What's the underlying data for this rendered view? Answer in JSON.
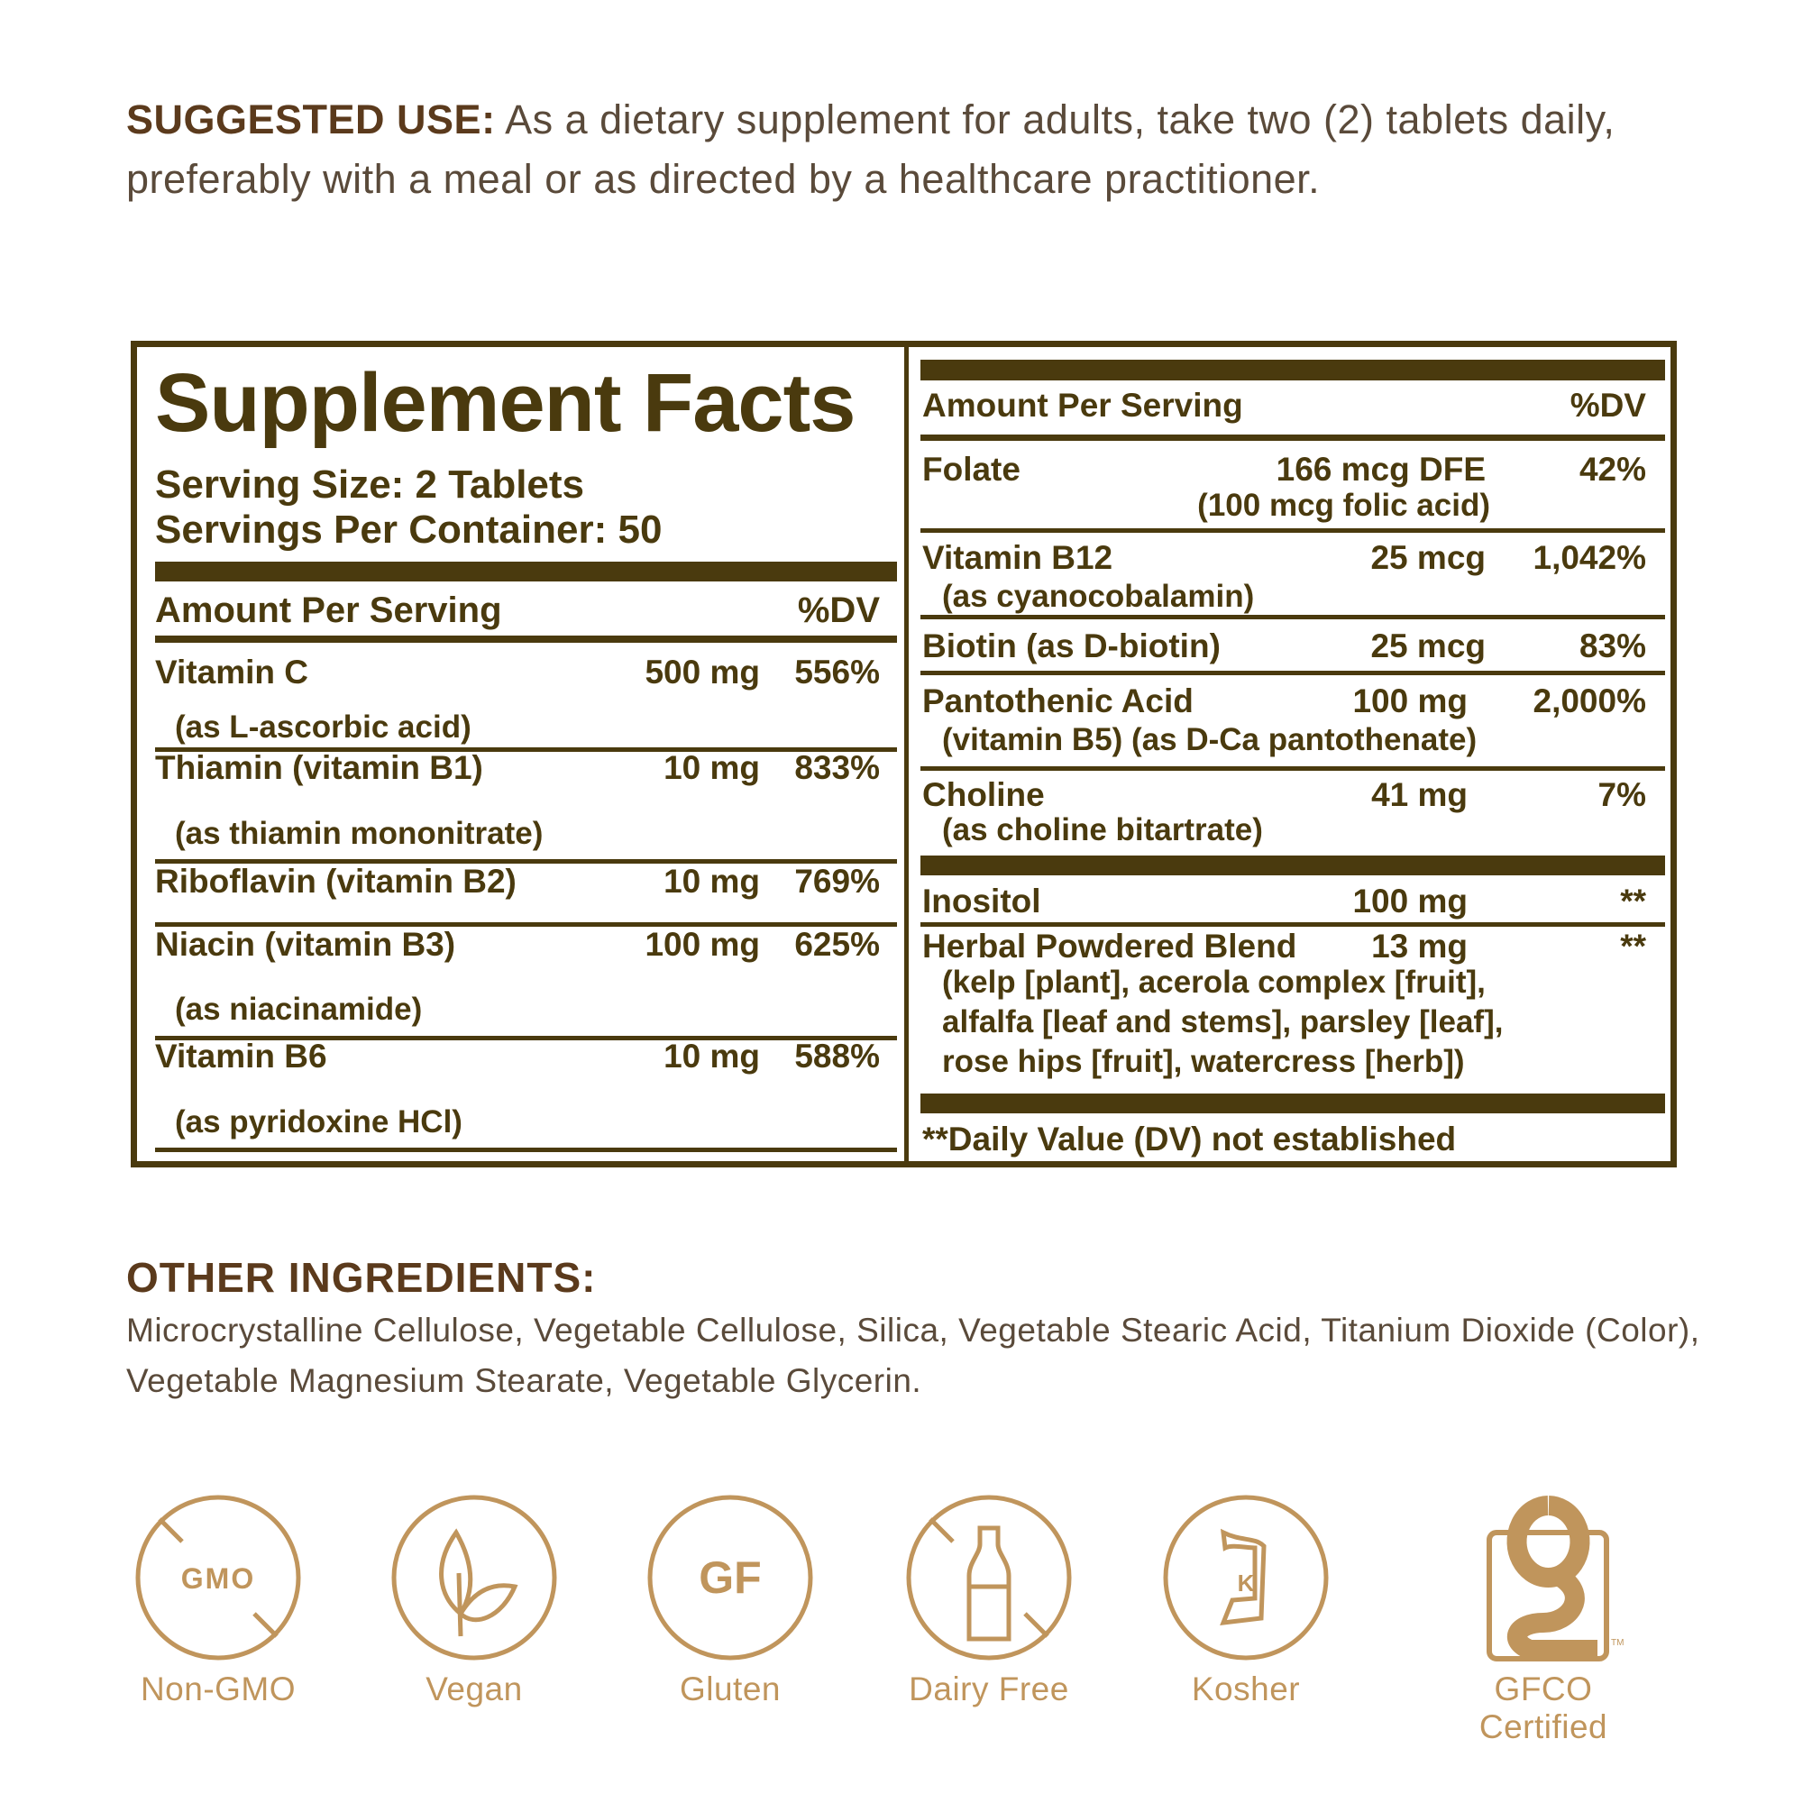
{
  "suggested_use": {
    "label": "SUGGESTED USE:",
    "text": " As a dietary supplement for adults, take two (2) tablets daily, preferably with a meal or as directed by a healthcare practitioner."
  },
  "facts": {
    "title": "Supplement Facts",
    "serving_size": "Serving Size: 2 Tablets",
    "servings_per_container": "Servings Per Container: 50",
    "header_amount": "Amount Per Serving",
    "header_dv": "%DV",
    "left_rows": [
      {
        "name": "Vitamin C",
        "sub": "(as L-ascorbic acid)",
        "amount": "500 mg",
        "dv": "556%"
      },
      {
        "name": "Thiamin (vitamin B1)",
        "sub": "(as thiamin mononitrate)",
        "amount": "10 mg",
        "dv": "833%"
      },
      {
        "name": "Riboflavin (vitamin B2)",
        "sub": "",
        "amount": "10 mg",
        "dv": "769%"
      },
      {
        "name": "Niacin (vitamin B3)",
        "sub": "(as niacinamide)",
        "amount": "100 mg",
        "dv": "625%"
      },
      {
        "name": "Vitamin B6",
        "sub": "(as pyridoxine HCl)",
        "amount": "10 mg",
        "dv": "588%"
      }
    ],
    "right_rows": [
      {
        "name": "Folate",
        "sub": "(100 mcg folic acid)",
        "amount": "166 mcg DFE",
        "dv": "42%"
      },
      {
        "name": "Vitamin B12",
        "sub": "(as cyanocobalamin)",
        "amount": "25 mcg",
        "dv": "1,042%"
      },
      {
        "name": "Biotin (as D-biotin)",
        "sub": "",
        "amount": "25 mcg",
        "dv": "83%"
      },
      {
        "name": "Pantothenic Acid",
        "sub": "(vitamin B5) (as D-Ca pantothenate)",
        "amount": "100 mg",
        "dv": "2,000%"
      },
      {
        "name": "Choline",
        "sub": "(as choline bitartrate)",
        "amount": "41 mg",
        "dv": "7%"
      },
      {
        "name": "Inositol",
        "sub": "",
        "amount": "100 mg",
        "dv": "**"
      },
      {
        "name": "Herbal Powdered Blend",
        "sub": "(kelp [plant], acerola complex [fruit],\nalfalfa [leaf and stems], parsley [leaf],\nrose hips [fruit], watercress [herb])",
        "amount": "13 mg",
        "dv": "**"
      }
    ],
    "footnote": "**Daily Value (DV) not established"
  },
  "other_ingredients": {
    "heading": "OTHER INGREDIENTS:",
    "text": "Microcrystalline Cellulose, Vegetable Cellulose, Silica, Vegetable Stearic Acid, Titanium Dioxide (Color), Vegetable Magnesium Stearate, Vegetable Glycerin."
  },
  "badges": [
    {
      "label": "Non-GMO",
      "icon": "no-gmo-icon",
      "icon_text": "GMO"
    },
    {
      "label": "Vegan",
      "icon": "leaf-icon"
    },
    {
      "label": "Gluten",
      "icon": "gluten-free-icon",
      "icon_text": "GF"
    },
    {
      "label": "Dairy Free",
      "icon": "no-milk-bottle-icon"
    },
    {
      "label": "Kosher",
      "icon": "kosher-icon",
      "icon_text": "K"
    },
    {
      "label": "GFCO Certified",
      "icon": "gfco-logo-icon"
    }
  ],
  "colors": {
    "label_text": "#4a3a0e",
    "heading": "#5b3a1c",
    "body_text": "#5a4a3a",
    "badge_gold": "#c0955c"
  }
}
